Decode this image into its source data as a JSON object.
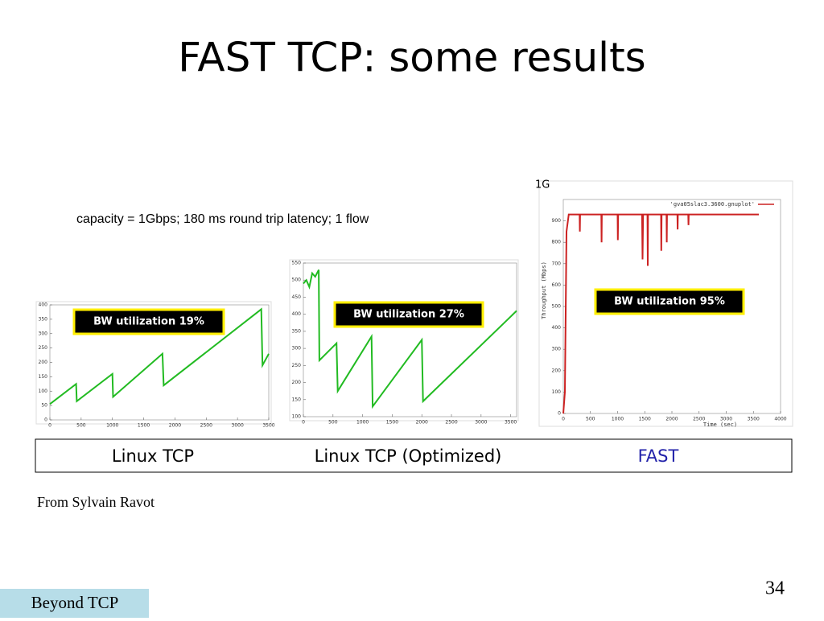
{
  "title": "FAST TCP: some results",
  "subtitle": "capacity = 1Gbps; 180 ms round trip latency; 1 flow",
  "chart_data": [
    {
      "type": "line",
      "annotation": "BW utilization 19%",
      "x": [
        0,
        420,
        430,
        1000,
        1010,
        1800,
        1820,
        3380,
        3400,
        3500
      ],
      "series": [
        {
          "color": "#22bb22",
          "values": [
            55,
            125,
            65,
            160,
            80,
            230,
            120,
            385,
            190,
            230
          ]
        }
      ],
      "xlim": [
        0,
        3500
      ],
      "xticks": [
        0,
        500,
        1000,
        1500,
        2000,
        2500,
        3000,
        3500
      ],
      "ylim": [
        0,
        400
      ],
      "yticks": [
        0,
        50,
        100,
        150,
        200,
        250,
        300,
        350,
        400
      ]
    },
    {
      "type": "line",
      "annotation": "BW utilization 27%",
      "x": [
        0,
        50,
        100,
        150,
        200,
        260,
        270,
        560,
        580,
        1150,
        1170,
        2000,
        2020,
        3600
      ],
      "series": [
        {
          "color": "#22bb22",
          "values": [
            490,
            500,
            480,
            520,
            510,
            530,
            265,
            315,
            175,
            335,
            130,
            325,
            145,
            410
          ]
        }
      ],
      "xlim": [
        0,
        3600
      ],
      "xticks": [
        0,
        500,
        1000,
        1500,
        2000,
        2500,
        3000,
        3500
      ],
      "ylim": [
        100,
        550
      ],
      "yticks": [
        100,
        150,
        200,
        250,
        300,
        350,
        400,
        450,
        500,
        550
      ]
    },
    {
      "type": "line",
      "annotation": "BW utilization 95%",
      "top_label": "1G",
      "x_label": "Time (sec)",
      "y_label": "Throughput (Mbps)",
      "x": [
        0,
        30,
        60,
        100,
        300,
        305,
        310,
        700,
        705,
        710,
        1000,
        1005,
        1010,
        1450,
        1460,
        1470,
        1550,
        1555,
        1560,
        1800,
        1805,
        1810,
        1900,
        1905,
        1910,
        2100,
        2105,
        2110,
        2300,
        2305,
        2310,
        3600
      ],
      "series": [
        {
          "name": "'gva05slac3.3600.gnuplot'",
          "color": "#cc2222",
          "values": [
            0,
            100,
            850,
            930,
            930,
            850,
            930,
            930,
            800,
            930,
            930,
            810,
            930,
            930,
            720,
            930,
            930,
            690,
            930,
            930,
            760,
            930,
            930,
            800,
            930,
            930,
            860,
            930,
            930,
            880,
            930,
            930
          ]
        }
      ],
      "xlim": [
        0,
        4000
      ],
      "xticks": [
        0,
        500,
        1000,
        1500,
        2000,
        2500,
        3000,
        3500,
        4000
      ],
      "ylim": [
        0,
        1000
      ],
      "yticks": [
        0,
        100,
        200,
        300,
        400,
        500,
        600,
        700,
        800,
        900
      ]
    }
  ],
  "labels": [
    "Linux TCP",
    "Linux TCP (Optimized)",
    "FAST"
  ],
  "source": "From Sylvain Ravot",
  "page_number": "34",
  "footer": "Beyond TCP"
}
